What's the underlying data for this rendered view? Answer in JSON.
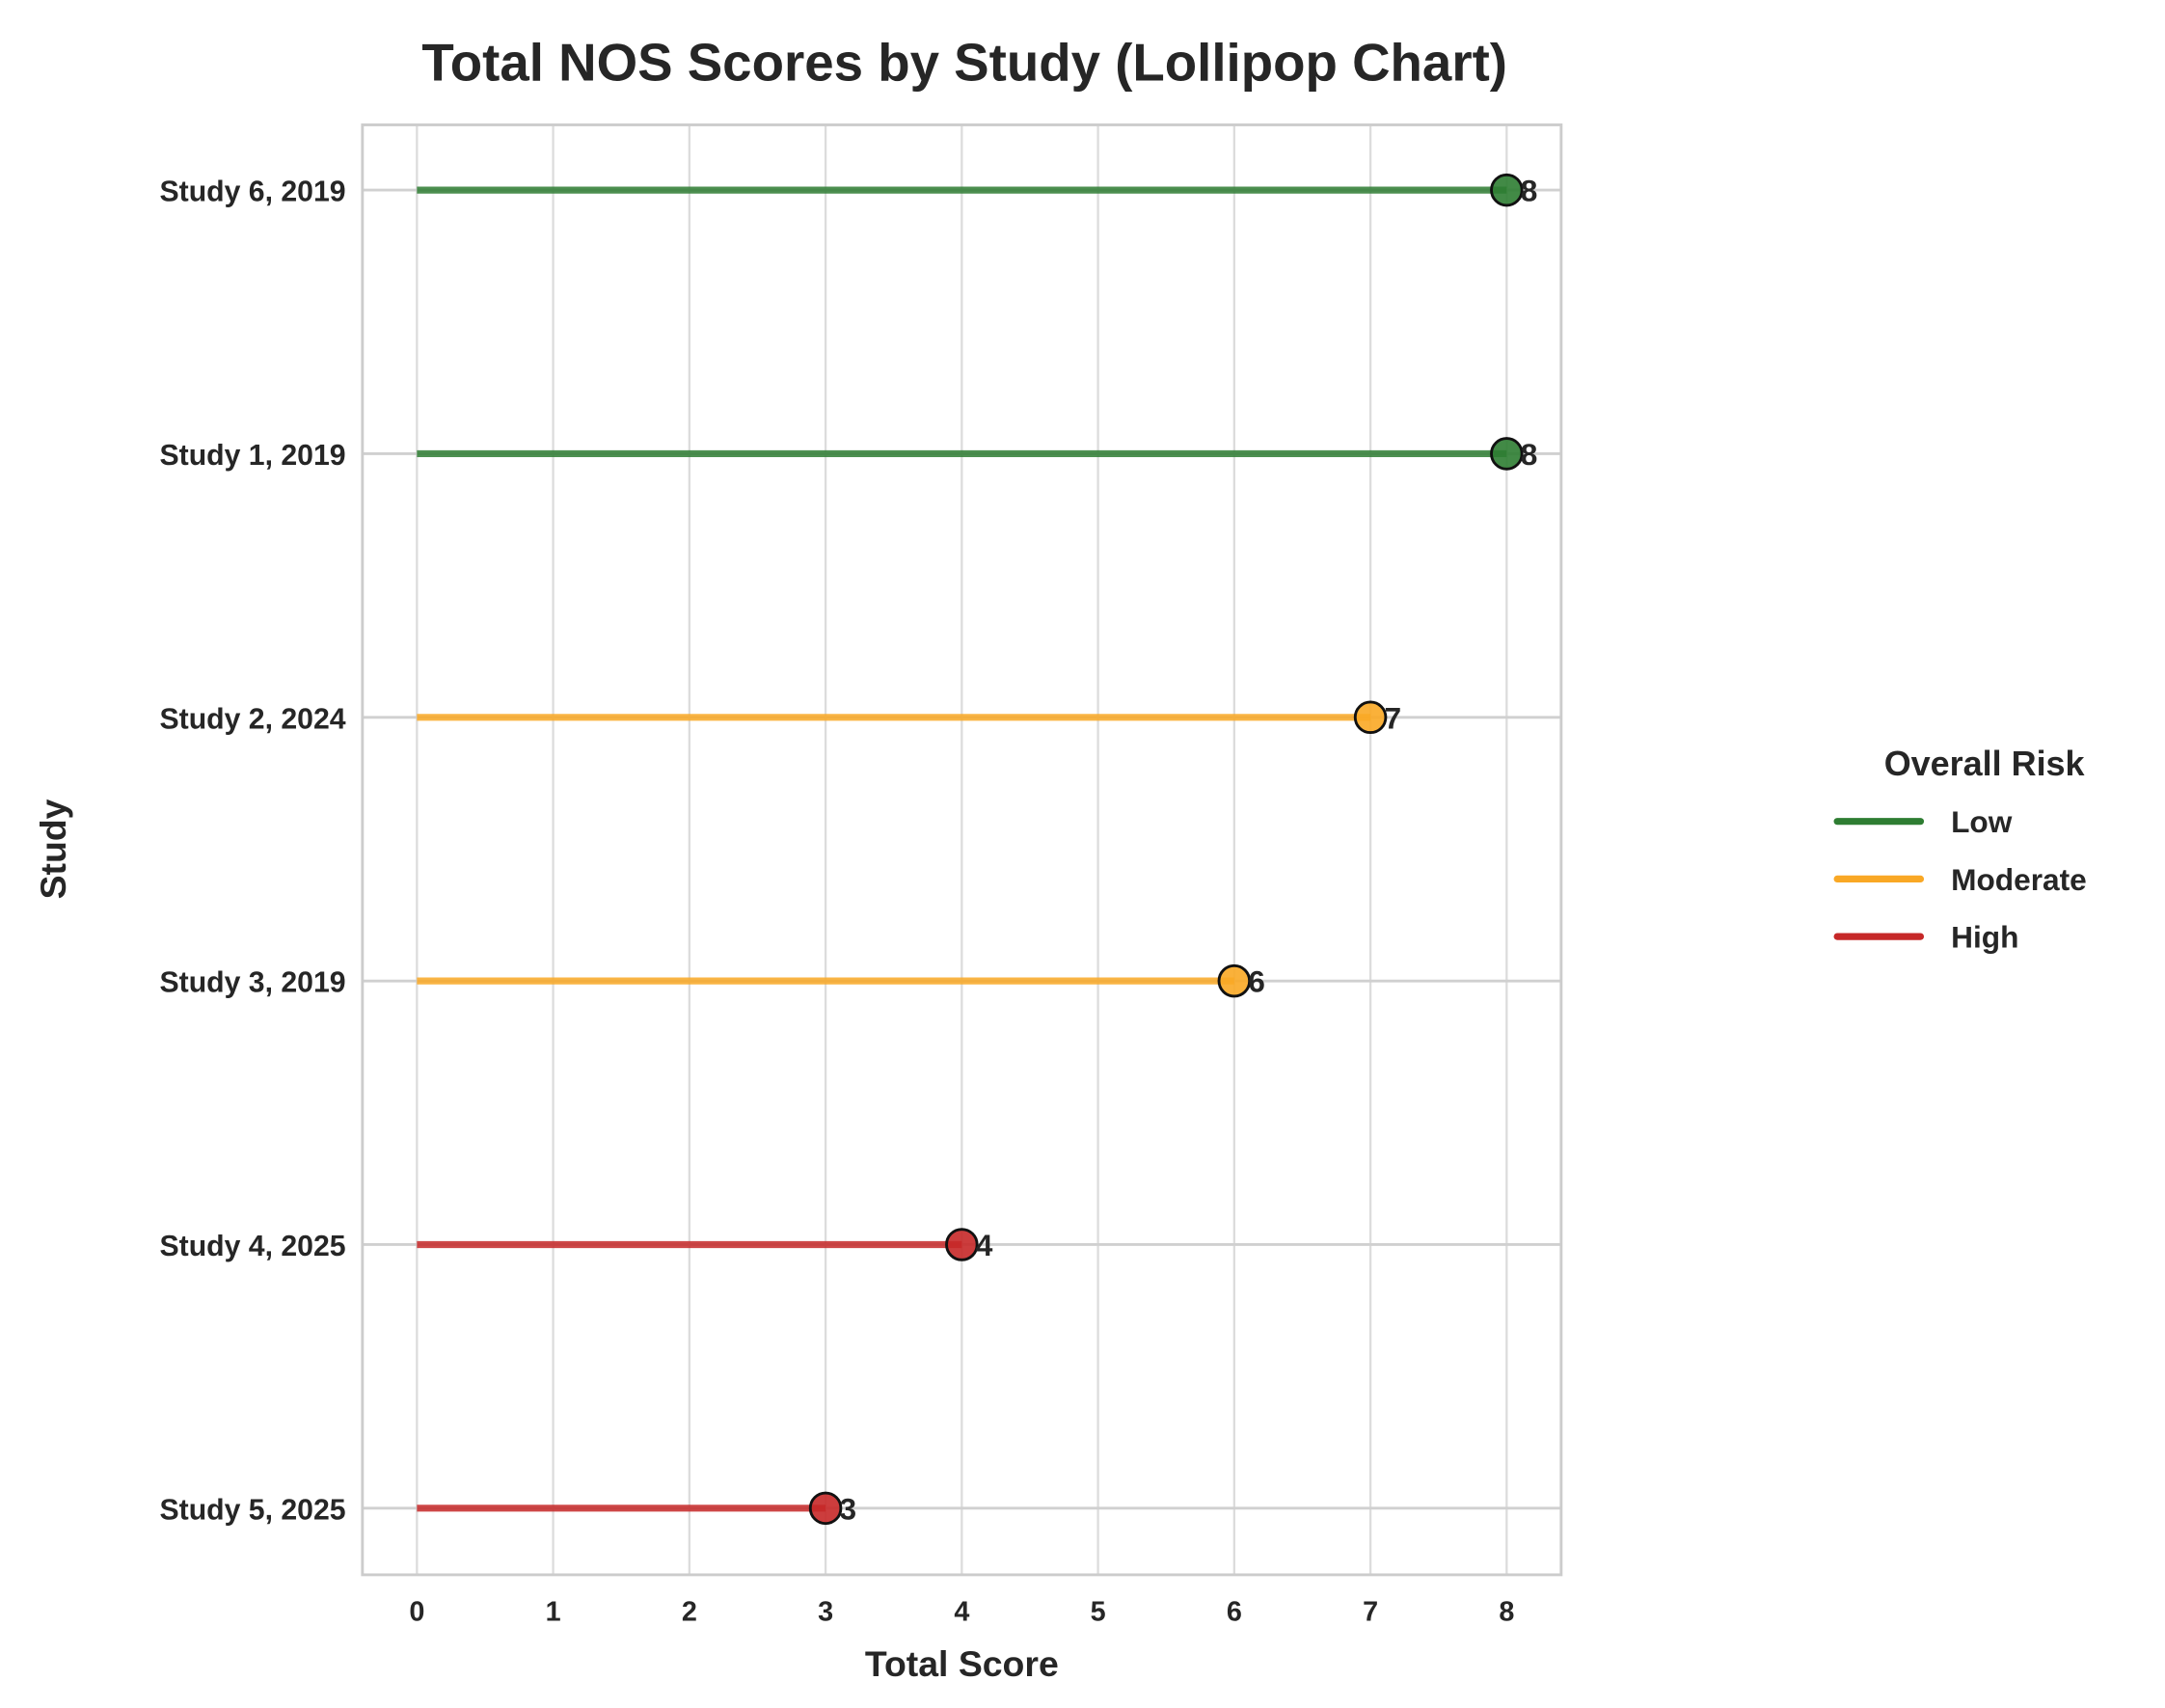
{
  "chart_data": {
    "type": "lollipop",
    "title": "Total NOS Scores by Study (Lollipop Chart)",
    "xlabel": "Total Score",
    "ylabel": "Study",
    "xlim": [
      -0.4,
      8.4
    ],
    "xticks": [
      "0",
      "1",
      "2",
      "3",
      "4",
      "5",
      "6",
      "7",
      "8"
    ],
    "grid": true,
    "legend": {
      "title": "Overall Risk",
      "placement": "right",
      "entries": [
        {
          "label": "Low",
          "color": "#2e7d32"
        },
        {
          "label": "Moderate",
          "color": "#f9a825"
        },
        {
          "label": "High",
          "color": "#c62828"
        }
      ]
    },
    "studies": [
      {
        "label": "Study 6, 2019",
        "score": 8,
        "risk": "Low"
      },
      {
        "label": "Study 1, 2019",
        "score": 8,
        "risk": "Low"
      },
      {
        "label": "Study 2, 2024",
        "score": 7,
        "risk": "Moderate"
      },
      {
        "label": "Study 3, 2019",
        "score": 6,
        "risk": "Moderate"
      },
      {
        "label": "Study 4, 2025",
        "score": 4,
        "risk": "High"
      },
      {
        "label": "Study 5, 2025",
        "score": 3,
        "risk": "High"
      }
    ]
  }
}
